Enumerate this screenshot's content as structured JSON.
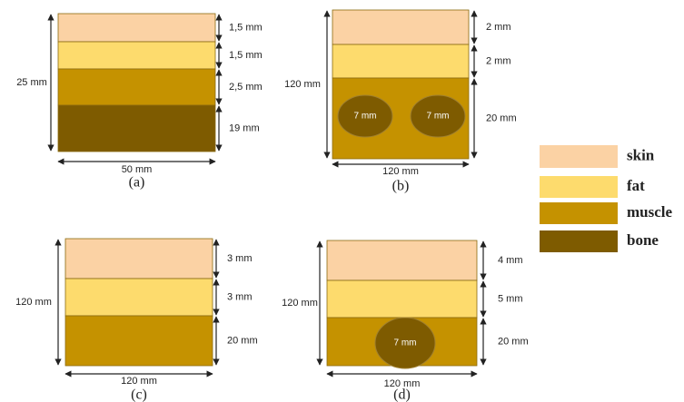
{
  "panels": [
    {
      "caption": "(a)",
      "width_label": "50 mm",
      "height_label": "25 mm",
      "layer_labels": [
        "1,5 mm",
        "1,5 mm",
        "2,5 mm",
        "19 mm"
      ],
      "inclusion_labels": []
    },
    {
      "caption": "(b)",
      "width_label": "120 mm",
      "height_label": "120 mm",
      "layer_labels": [
        "2 mm",
        "2 mm",
        "20 mm"
      ],
      "inclusion_labels": [
        "7 mm",
        "7 mm"
      ]
    },
    {
      "caption": "(c)",
      "width_label": "120 mm",
      "height_label": "120 mm",
      "layer_labels": [
        "3 mm",
        "3 mm",
        "20 mm"
      ],
      "inclusion_labels": []
    },
    {
      "caption": "(d)",
      "width_label": "120 mm",
      "height_label": "120 mm",
      "layer_labels": [
        "4 mm",
        "5 mm",
        "20 mm"
      ],
      "inclusion_labels": [
        "7 mm"
      ]
    }
  ],
  "legend": [
    "skin",
    "fat",
    "muscle",
    "bone"
  ]
}
